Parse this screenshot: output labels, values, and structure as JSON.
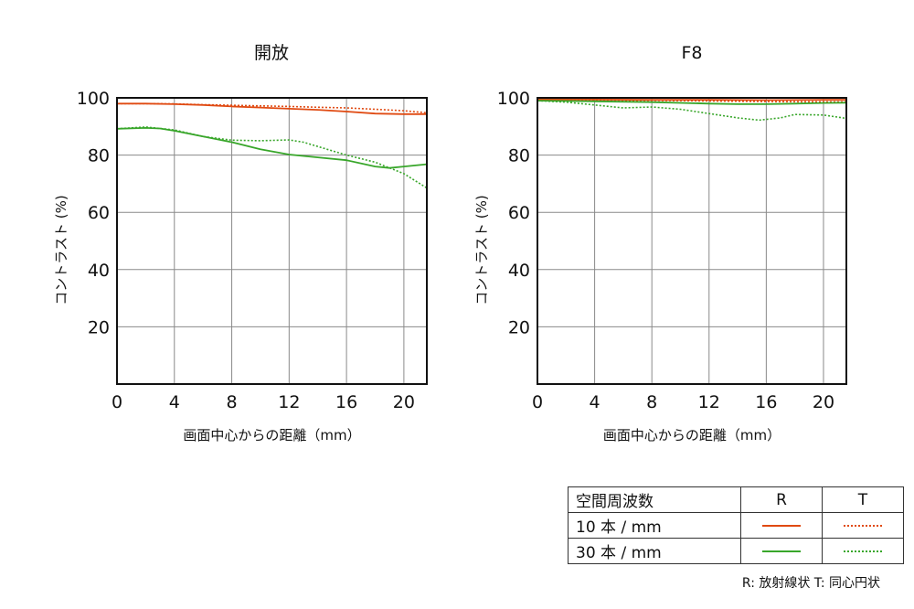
{
  "chart_data": [
    {
      "type": "line",
      "title": "開放",
      "xlabel": "画面中心からの距離（mm）",
      "ylabel": "コントラスト (%)",
      "xlim": [
        0,
        21.6
      ],
      "ylim": [
        0,
        100
      ],
      "xticks": [
        0,
        4,
        8,
        12,
        16,
        20
      ],
      "yticks": [
        20,
        40,
        60,
        80,
        100
      ],
      "grid": true,
      "series": [
        {
          "key": "10R",
          "color": "#e04a12",
          "style": "solid",
          "x": [
            0,
            2,
            4,
            6,
            8,
            10,
            12,
            14,
            16,
            18,
            20,
            21.6
          ],
          "y": [
            98.0,
            98.0,
            97.8,
            97.5,
            97.0,
            96.6,
            96.2,
            95.8,
            95.2,
            94.5,
            94.3,
            94.3
          ]
        },
        {
          "key": "10T",
          "color": "#e04a12",
          "style": "dotted",
          "x": [
            0,
            2,
            4,
            6,
            8,
            10,
            12,
            14,
            16,
            18,
            20,
            21.6
          ],
          "y": [
            98.0,
            98.0,
            97.9,
            97.6,
            97.4,
            97.2,
            97.0,
            96.7,
            96.5,
            96.0,
            95.5,
            94.8
          ]
        },
        {
          "key": "30R",
          "color": "#38a62a",
          "style": "solid",
          "x": [
            0,
            2,
            3,
            4,
            6,
            8,
            10,
            12,
            14,
            16,
            18,
            19,
            20,
            21.6
          ],
          "y": [
            89.2,
            89.5,
            89.3,
            88.5,
            86.5,
            84.5,
            82.0,
            80.2,
            79.2,
            78.2,
            76.0,
            75.5,
            76.0,
            76.8
          ]
        },
        {
          "key": "30T",
          "color": "#38a62a",
          "style": "dotted",
          "x": [
            0,
            2,
            4,
            6,
            8,
            10,
            12,
            13,
            14,
            16,
            18,
            20,
            21.6
          ],
          "y": [
            89.2,
            89.8,
            88.8,
            86.5,
            85.2,
            85.0,
            85.3,
            84.5,
            83.0,
            80.0,
            77.5,
            73.5,
            68.5
          ]
        }
      ]
    },
    {
      "type": "line",
      "title": "F8",
      "xlabel": "画面中心からの距離（mm）",
      "ylabel": "コントラスト (%)",
      "xlim": [
        0,
        21.6
      ],
      "ylim": [
        0,
        100
      ],
      "xticks": [
        0,
        4,
        8,
        12,
        16,
        20
      ],
      "yticks": [
        20,
        40,
        60,
        80,
        100
      ],
      "grid": true,
      "series": [
        {
          "key": "10R",
          "color": "#e04a12",
          "style": "solid",
          "x": [
            0,
            4,
            8,
            12,
            16,
            20,
            21.6
          ],
          "y": [
            99.4,
            99.4,
            99.3,
            99.3,
            99.2,
            99.3,
            99.3
          ]
        },
        {
          "key": "10T",
          "color": "#e04a12",
          "style": "dotted",
          "x": [
            0,
            4,
            8,
            12,
            16,
            20,
            21.6
          ],
          "y": [
            99.3,
            99.2,
            99.1,
            98.9,
            98.7,
            98.6,
            98.6
          ]
        },
        {
          "key": "30R",
          "color": "#38a62a",
          "style": "solid",
          "x": [
            0,
            4,
            8,
            12,
            14,
            16,
            18,
            20,
            21.6
          ],
          "y": [
            99.0,
            98.8,
            98.5,
            98.0,
            97.8,
            97.8,
            98.0,
            98.2,
            98.3
          ]
        },
        {
          "key": "30T",
          "color": "#38a62a",
          "style": "dotted",
          "x": [
            0,
            2,
            4,
            6,
            8,
            10,
            12,
            14,
            15.5,
            17,
            18,
            20,
            21.6
          ],
          "y": [
            99.0,
            98.5,
            97.5,
            96.5,
            96.8,
            96.0,
            94.5,
            93.0,
            92.2,
            93.0,
            94.2,
            94.0,
            92.8
          ]
        }
      ]
    }
  ],
  "legend": {
    "header": "空間周波数",
    "col_r": "R",
    "col_t": "T",
    "rows": [
      {
        "label": "10 本 / mm",
        "color": "#e04a12"
      },
      {
        "label": "30 本 / mm",
        "color": "#38a62a"
      }
    ]
  },
  "note": "R: 放射線状 T: 同心円状"
}
